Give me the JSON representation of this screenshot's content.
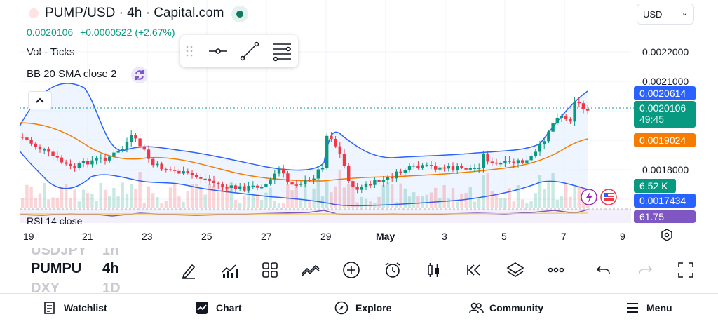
{
  "header": {
    "title": "PUMP/USD · 4h · Capital.com",
    "price": "0.0020106",
    "change": "+0.0000522 (+2.67%)",
    "volume_label": "Vol · Ticks",
    "indicator_label": "BB 20 SMA close 2",
    "currency": "USD"
  },
  "price_axis": {
    "ticks": [
      "0.0022000",
      "0.0021000",
      "0.0018000"
    ],
    "tags": [
      {
        "label": "0.0020614",
        "color": "#2962ff"
      },
      {
        "label": "0.0020106",
        "sublabel": "49:45",
        "color": "#089981"
      },
      {
        "label": "0.0019024",
        "color": "#f57c00"
      },
      {
        "label": "6.52 K",
        "color": "#089981"
      },
      {
        "label": "0.0017434",
        "color": "#2962ff"
      }
    ]
  },
  "date_axis": [
    "19",
    "21",
    "23",
    "25",
    "27",
    "29",
    "May",
    "3",
    "5",
    "7",
    "9"
  ],
  "rsi": {
    "label": "RSI 14 close",
    "value": "61.75"
  },
  "symbols": {
    "prev": {
      "name": "USDJPY",
      "interval": "1h"
    },
    "current": {
      "name": "PUMPU",
      "interval": "4h"
    },
    "next": {
      "name": "DXY",
      "interval": "1D"
    }
  },
  "toolbar_icons": [
    "pencil-icon",
    "indicators-icon",
    "grid-layout-icon",
    "compare-icon",
    "add-icon",
    "alarm-icon",
    "candles-icon",
    "replay-icon",
    "layers-icon",
    "more-icon",
    "undo-icon",
    "redo-icon",
    "fullscreen-icon"
  ],
  "nav": {
    "watchlist": "Watchlist",
    "chart": "Chart",
    "explore": "Explore",
    "community": "Community",
    "menu": "Menu"
  },
  "colors": {
    "up": "#089981",
    "down": "#f23645",
    "bb_band": "#2962ff",
    "bb_basis": "#f57c00",
    "rsi": "#7e57c2"
  }
}
